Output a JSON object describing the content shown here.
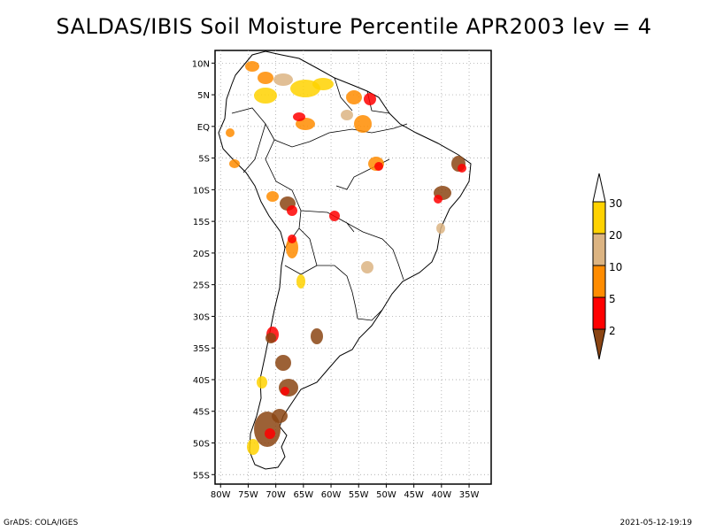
{
  "title": "SALDAS/IBIS Soil Moisture Percentile APR2003 lev = 4",
  "map": {
    "lat_labels": [
      "10N",
      "5N",
      "EQ",
      "5S",
      "10S",
      "15S",
      "20S",
      "25S",
      "30S",
      "35S",
      "40S",
      "45S",
      "50S",
      "55S"
    ],
    "lon_labels": [
      "80W",
      "75W",
      "70W",
      "65W",
      "60W",
      "55W",
      "50W",
      "45W",
      "40W",
      "35W"
    ],
    "lat_values": [
      10,
      5,
      0,
      -5,
      -10,
      -15,
      -20,
      -25,
      -30,
      -35,
      -40,
      -45,
      -50,
      -55
    ],
    "lon_values": [
      -80,
      -75,
      -70,
      -65,
      -60,
      -55,
      -50,
      -45,
      -40,
      -35
    ]
  },
  "legend": {
    "labels": [
      "30",
      "20",
      "10",
      "5",
      "2"
    ],
    "colors": {
      "above_30": "#ffffff",
      "20_30": "#ffd200",
      "10_20": "#dcb482",
      "5_10": "#ff8c00",
      "2_5": "#ff0000",
      "below_2": "#8b4513"
    }
  },
  "footer": {
    "left": "GrADS: COLA/IGES",
    "right": "2021-05-12-19:19"
  }
}
